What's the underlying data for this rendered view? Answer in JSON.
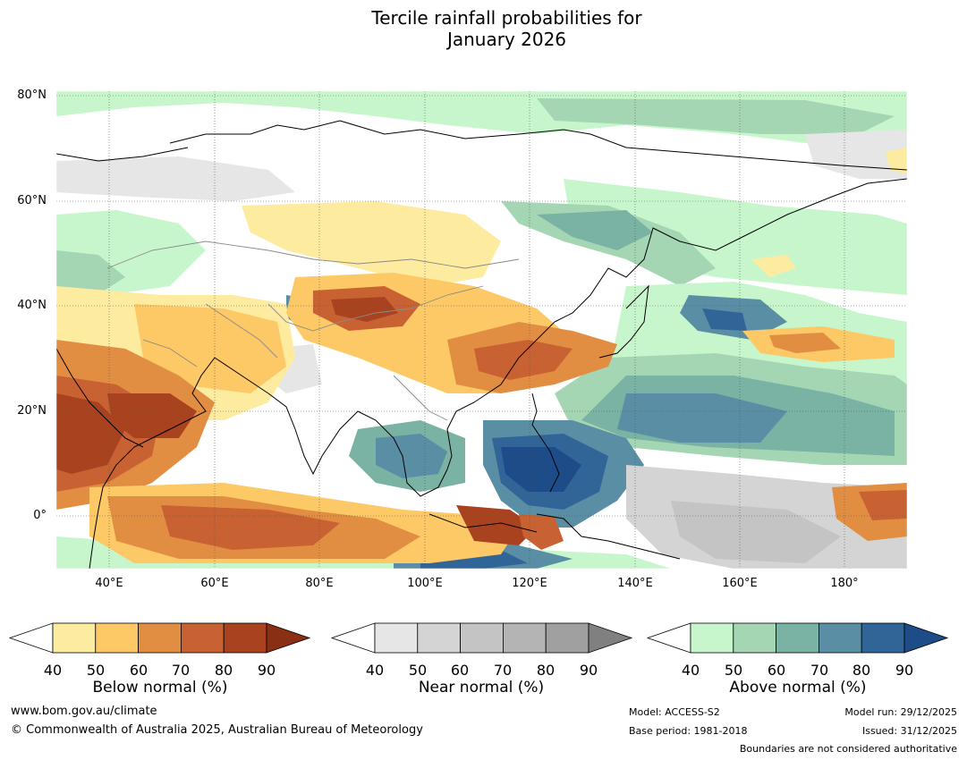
{
  "title": {
    "line1": "Tercile rainfall probabilities for",
    "line2": "January 2026"
  },
  "map": {
    "lat_labels": [
      "80°N",
      "60°N",
      "40°N",
      "20°N",
      "0°"
    ],
    "lon_labels": [
      "40°E",
      "60°E",
      "80°E",
      "100°E",
      "120°E",
      "140°E",
      "160°E",
      "180°"
    ]
  },
  "colorbars": {
    "below": {
      "title": "Below normal (%)",
      "ticks": [
        "40",
        "50",
        "60",
        "70",
        "80",
        "90"
      ],
      "colors": [
        "#fdeba0",
        "#fcc966",
        "#e28e42",
        "#c96232",
        "#a9431f",
        "#8a2e14"
      ]
    },
    "near": {
      "title": "Near normal (%)",
      "ticks": [
        "40",
        "50",
        "60",
        "70",
        "80",
        "90"
      ],
      "colors": [
        "#e6e6e6",
        "#d4d4d4",
        "#c4c4c4",
        "#b4b4b4",
        "#a0a0a0",
        "#808080"
      ]
    },
    "above": {
      "title": "Above normal (%)",
      "ticks": [
        "40",
        "50",
        "60",
        "70",
        "80",
        "90"
      ],
      "colors": [
        "#c8f6cc",
        "#a4d6b4",
        "#7ab2a4",
        "#5a8ea4",
        "#326597",
        "#1d4c88"
      ]
    }
  },
  "footer": {
    "website": "www.bom.gov.au/climate",
    "copyright": "© Commonwealth of Australia 2025, Australian Bureau of Meteorology",
    "model": "Model: ACCESS-S2",
    "base_period": "Base period: 1981-2018",
    "model_run": "Model run: 29/12/2025",
    "issued": "Issued: 31/12/2025",
    "disclaimer": "Boundaries are not considered authoritative"
  }
}
